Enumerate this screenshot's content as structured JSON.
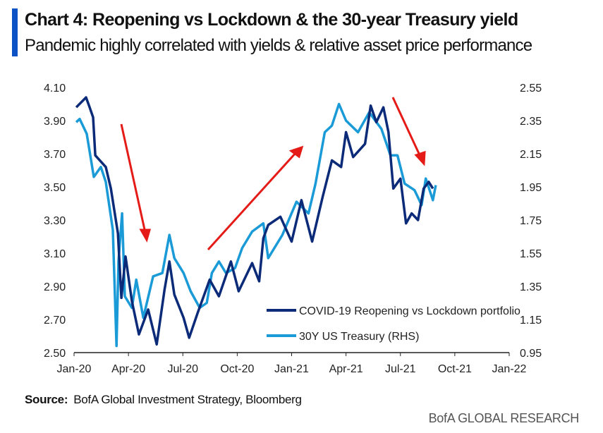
{
  "header": {
    "title": "Chart 4: Reopening vs Lockdown & the 30-year Treasury yield",
    "subtitle": "Pandemic highly correlated with yields & relative asset price performance"
  },
  "footer": {
    "source_label": "Source:",
    "source_text": "BofA Global Investment Strategy, Bloomberg",
    "brand": "BofA GLOBAL RESEARCH"
  },
  "colors": {
    "accent": "#0a52c5",
    "dark_series": "#0b2a78",
    "light_series": "#1a9ad6",
    "arrow": "#e41b17"
  },
  "chart_data": {
    "type": "line",
    "title": "Chart 4: Reopening vs Lockdown & the 30-year Treasury yield",
    "x_unit": "months since Jan-2020",
    "x_ticks": [
      "Jan-20",
      "Apr-20",
      "Jul-20",
      "Oct-20",
      "Jan-21",
      "Apr-21",
      "Jul-21",
      "Oct-21",
      "Jan-22"
    ],
    "xlim": [
      0,
      24
    ],
    "ylim_left": [
      2.5,
      4.1
    ],
    "ylim_right": [
      0.95,
      2.55
    ],
    "y_ticks_left": [
      "4.10",
      "3.90",
      "3.70",
      "3.50",
      "3.30",
      "3.10",
      "2.90",
      "2.70",
      "2.50"
    ],
    "y_ticks_right": [
      "2.55",
      "2.35",
      "2.15",
      "1.95",
      "1.75",
      "1.55",
      "1.35",
      "1.15",
      "0.95"
    ],
    "legend_position": "bottom-right",
    "series": [
      {
        "name": "COVID-19 Reopening vs Lockdown portfolio",
        "axis": "left",
        "x": [
          0.12,
          0.66,
          0.86,
          1.05,
          1.17,
          1.75,
          2.03,
          2.42,
          2.61,
          2.84,
          3.19,
          3.58,
          4.09,
          4.56,
          4.99,
          5.26,
          5.53,
          6.04,
          6.35,
          6.82,
          7.48,
          7.99,
          8.65,
          9.08,
          9.82,
          10.21,
          10.44,
          10.71,
          11.38,
          12.0,
          12.54,
          13.13,
          13.71,
          14.22,
          14.73,
          15.0,
          15.39,
          16.05,
          16.36,
          16.67,
          17.06,
          17.34,
          17.61,
          18.0,
          18.31,
          18.62,
          18.97,
          19.28,
          19.56,
          19.79
        ],
        "y": [
          3.98,
          4.04,
          3.98,
          3.92,
          3.69,
          3.62,
          3.49,
          3.22,
          2.83,
          3.08,
          2.81,
          2.61,
          2.76,
          2.55,
          2.88,
          3.05,
          2.85,
          2.71,
          2.59,
          2.74,
          2.94,
          2.84,
          3.05,
          2.87,
          3.04,
          2.93,
          3.19,
          3.27,
          3.32,
          3.17,
          3.42,
          3.17,
          3.44,
          3.66,
          3.62,
          3.83,
          3.68,
          3.76,
          3.99,
          3.89,
          3.98,
          3.83,
          3.49,
          3.55,
          3.28,
          3.34,
          3.3,
          3.49,
          3.53,
          3.49
        ]
      },
      {
        "name": "30Y US Treasury (RHS)",
        "axis": "right",
        "x": [
          0.12,
          0.31,
          0.7,
          1.09,
          1.48,
          1.75,
          2.14,
          2.34,
          2.45,
          2.65,
          2.8,
          3.19,
          3.43,
          3.82,
          4.36,
          4.87,
          5.26,
          5.53,
          6.04,
          6.43,
          6.93,
          7.32,
          7.6,
          7.99,
          8.38,
          8.88,
          9.27,
          9.82,
          10.44,
          10.71,
          11.49,
          12.27,
          12.93,
          13.32,
          13.83,
          14.22,
          14.61,
          15.0,
          15.66,
          16.28,
          16.95,
          17.45,
          17.84,
          18.23,
          18.78,
          19.17,
          19.4,
          19.79,
          19.95
        ],
        "y": [
          2.34,
          2.36,
          2.27,
          2.01,
          2.07,
          1.98,
          1.69,
          0.99,
          1.5,
          1.79,
          1.29,
          1.22,
          1.39,
          1.16,
          1.41,
          1.43,
          1.66,
          1.52,
          1.43,
          1.32,
          1.22,
          1.25,
          1.43,
          1.5,
          1.43,
          1.46,
          1.58,
          1.68,
          1.73,
          1.52,
          1.66,
          1.86,
          1.79,
          1.97,
          2.28,
          2.32,
          2.45,
          2.35,
          2.28,
          2.4,
          2.3,
          2.14,
          2.14,
          1.97,
          1.93,
          1.84,
          2.0,
          1.87,
          1.96
        ]
      }
    ]
  }
}
